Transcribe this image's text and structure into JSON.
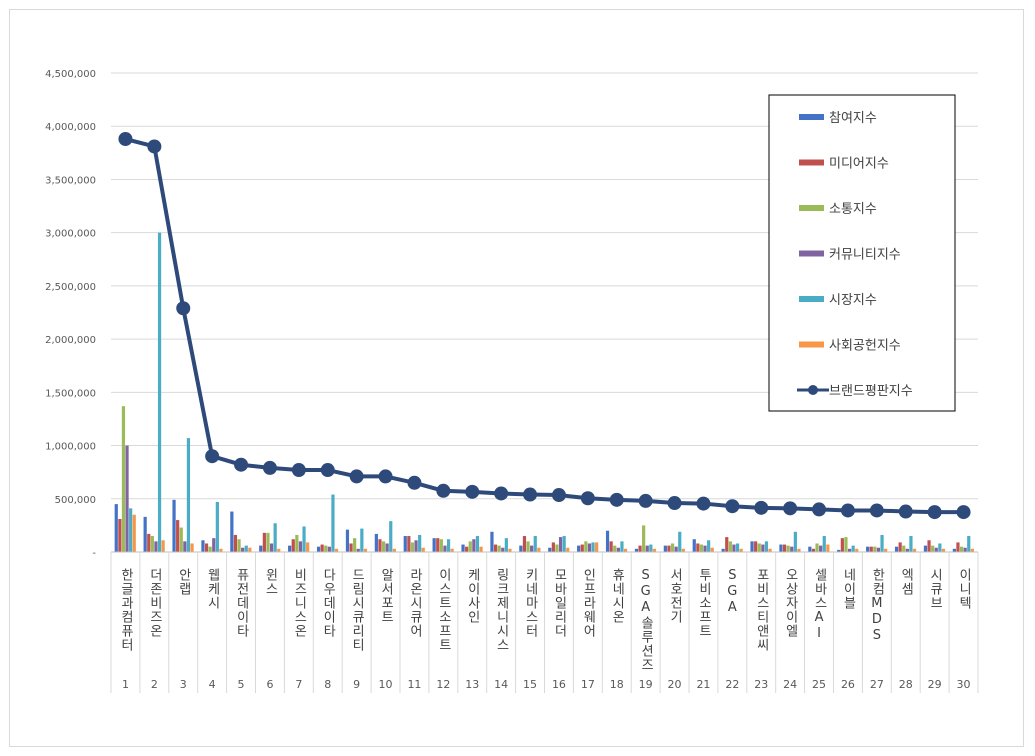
{
  "chart_data": {
    "type": "bar",
    "title": "",
    "xlabel": "",
    "ylabel": "",
    "ylim": [
      0,
      4500000
    ],
    "y_ticks": [
      "-",
      "500,000",
      "1,000,000",
      "1,500,000",
      "2,000,000",
      "2,500,000",
      "3,000,000",
      "3,500,000",
      "4,000,000",
      "4,500,000"
    ],
    "grid": true,
    "legend_position": "right",
    "categories": [
      "한글과컴퓨터",
      "더존비즈온",
      "안랩",
      "웹케시",
      "퓨전데이타",
      "윈스",
      "비즈니스온",
      "다우데이타",
      "드림시큐리티",
      "알서포트",
      "라온시큐어",
      "이스트소프트",
      "케이사인",
      "링크제니시스",
      "키네마스터",
      "모바일리더",
      "인프라웨어",
      "휴네시온",
      "SGA솔루션즈",
      "서호전기",
      "투비소프트",
      "SGA",
      "포비스티앤씨",
      "오상자이엘",
      "셀바스AI",
      "네이블",
      "한컴MDS",
      "엑셈",
      "시큐브",
      "이니텍"
    ],
    "ranks": [
      "1",
      "2",
      "3",
      "4",
      "5",
      "6",
      "7",
      "8",
      "9",
      "10",
      "11",
      "12",
      "13",
      "14",
      "15",
      "16",
      "17",
      "18",
      "19",
      "20",
      "21",
      "22",
      "23",
      "24",
      "25",
      "26",
      "27",
      "28",
      "29",
      "30"
    ],
    "series": [
      {
        "name": "참여지수",
        "color": "#4472c4",
        "values": [
          450000,
          330000,
          490000,
          110000,
          380000,
          60000,
          60000,
          50000,
          210000,
          170000,
          150000,
          130000,
          70000,
          190000,
          60000,
          40000,
          60000,
          200000,
          30000,
          60000,
          120000,
          30000,
          100000,
          70000,
          50000,
          20000,
          50000,
          50000,
          60000,
          30000
        ]
      },
      {
        "name": "미디어지수",
        "color": "#c0504d",
        "values": [
          310000,
          170000,
          300000,
          80000,
          160000,
          180000,
          120000,
          70000,
          80000,
          120000,
          150000,
          130000,
          50000,
          70000,
          150000,
          90000,
          70000,
          100000,
          60000,
          60000,
          80000,
          140000,
          100000,
          70000,
          30000,
          130000,
          50000,
          90000,
          110000,
          90000
        ]
      },
      {
        "name": "소통지수",
        "color": "#9bbb59",
        "values": [
          1370000,
          150000,
          230000,
          50000,
          120000,
          180000,
          160000,
          60000,
          130000,
          100000,
          90000,
          120000,
          100000,
          60000,
          100000,
          70000,
          100000,
          60000,
          250000,
          80000,
          70000,
          100000,
          80000,
          60000,
          80000,
          140000,
          50000,
          60000,
          60000,
          50000
        ]
      },
      {
        "name": "커뮤니티지수",
        "color": "#8064a2",
        "values": [
          1000000,
          100000,
          100000,
          130000,
          40000,
          80000,
          100000,
          50000,
          30000,
          80000,
          110000,
          60000,
          120000,
          40000,
          60000,
          140000,
          80000,
          40000,
          60000,
          50000,
          60000,
          70000,
          70000,
          50000,
          60000,
          30000,
          40000,
          30000,
          40000,
          40000
        ]
      },
      {
        "name": "시장지수",
        "color": "#4bacc6",
        "values": [
          410000,
          3000000,
          1070000,
          470000,
          60000,
          270000,
          240000,
          540000,
          220000,
          290000,
          160000,
          120000,
          150000,
          130000,
          150000,
          150000,
          90000,
          100000,
          70000,
          190000,
          110000,
          80000,
          100000,
          190000,
          150000,
          60000,
          160000,
          150000,
          80000,
          150000
        ]
      },
      {
        "name": "사회공헌지수",
        "color": "#f79646",
        "values": [
          350000,
          110000,
          80000,
          30000,
          40000,
          30000,
          90000,
          30000,
          30000,
          30000,
          40000,
          30000,
          50000,
          30000,
          40000,
          40000,
          90000,
          30000,
          30000,
          30000,
          40000,
          30000,
          30000,
          30000,
          70000,
          30000,
          30000,
          30000,
          30000,
          30000
        ]
      }
    ],
    "line_series": {
      "name": "브랜드평판지수",
      "color": "#2e4a7a",
      "values": [
        3880000,
        3810000,
        2290000,
        900000,
        820000,
        790000,
        770000,
        770000,
        710000,
        710000,
        650000,
        575000,
        565000,
        550000,
        540000,
        535000,
        505000,
        490000,
        480000,
        460000,
        455000,
        430000,
        415000,
        410000,
        400000,
        390000,
        390000,
        380000,
        375000,
        375000
      ]
    }
  }
}
